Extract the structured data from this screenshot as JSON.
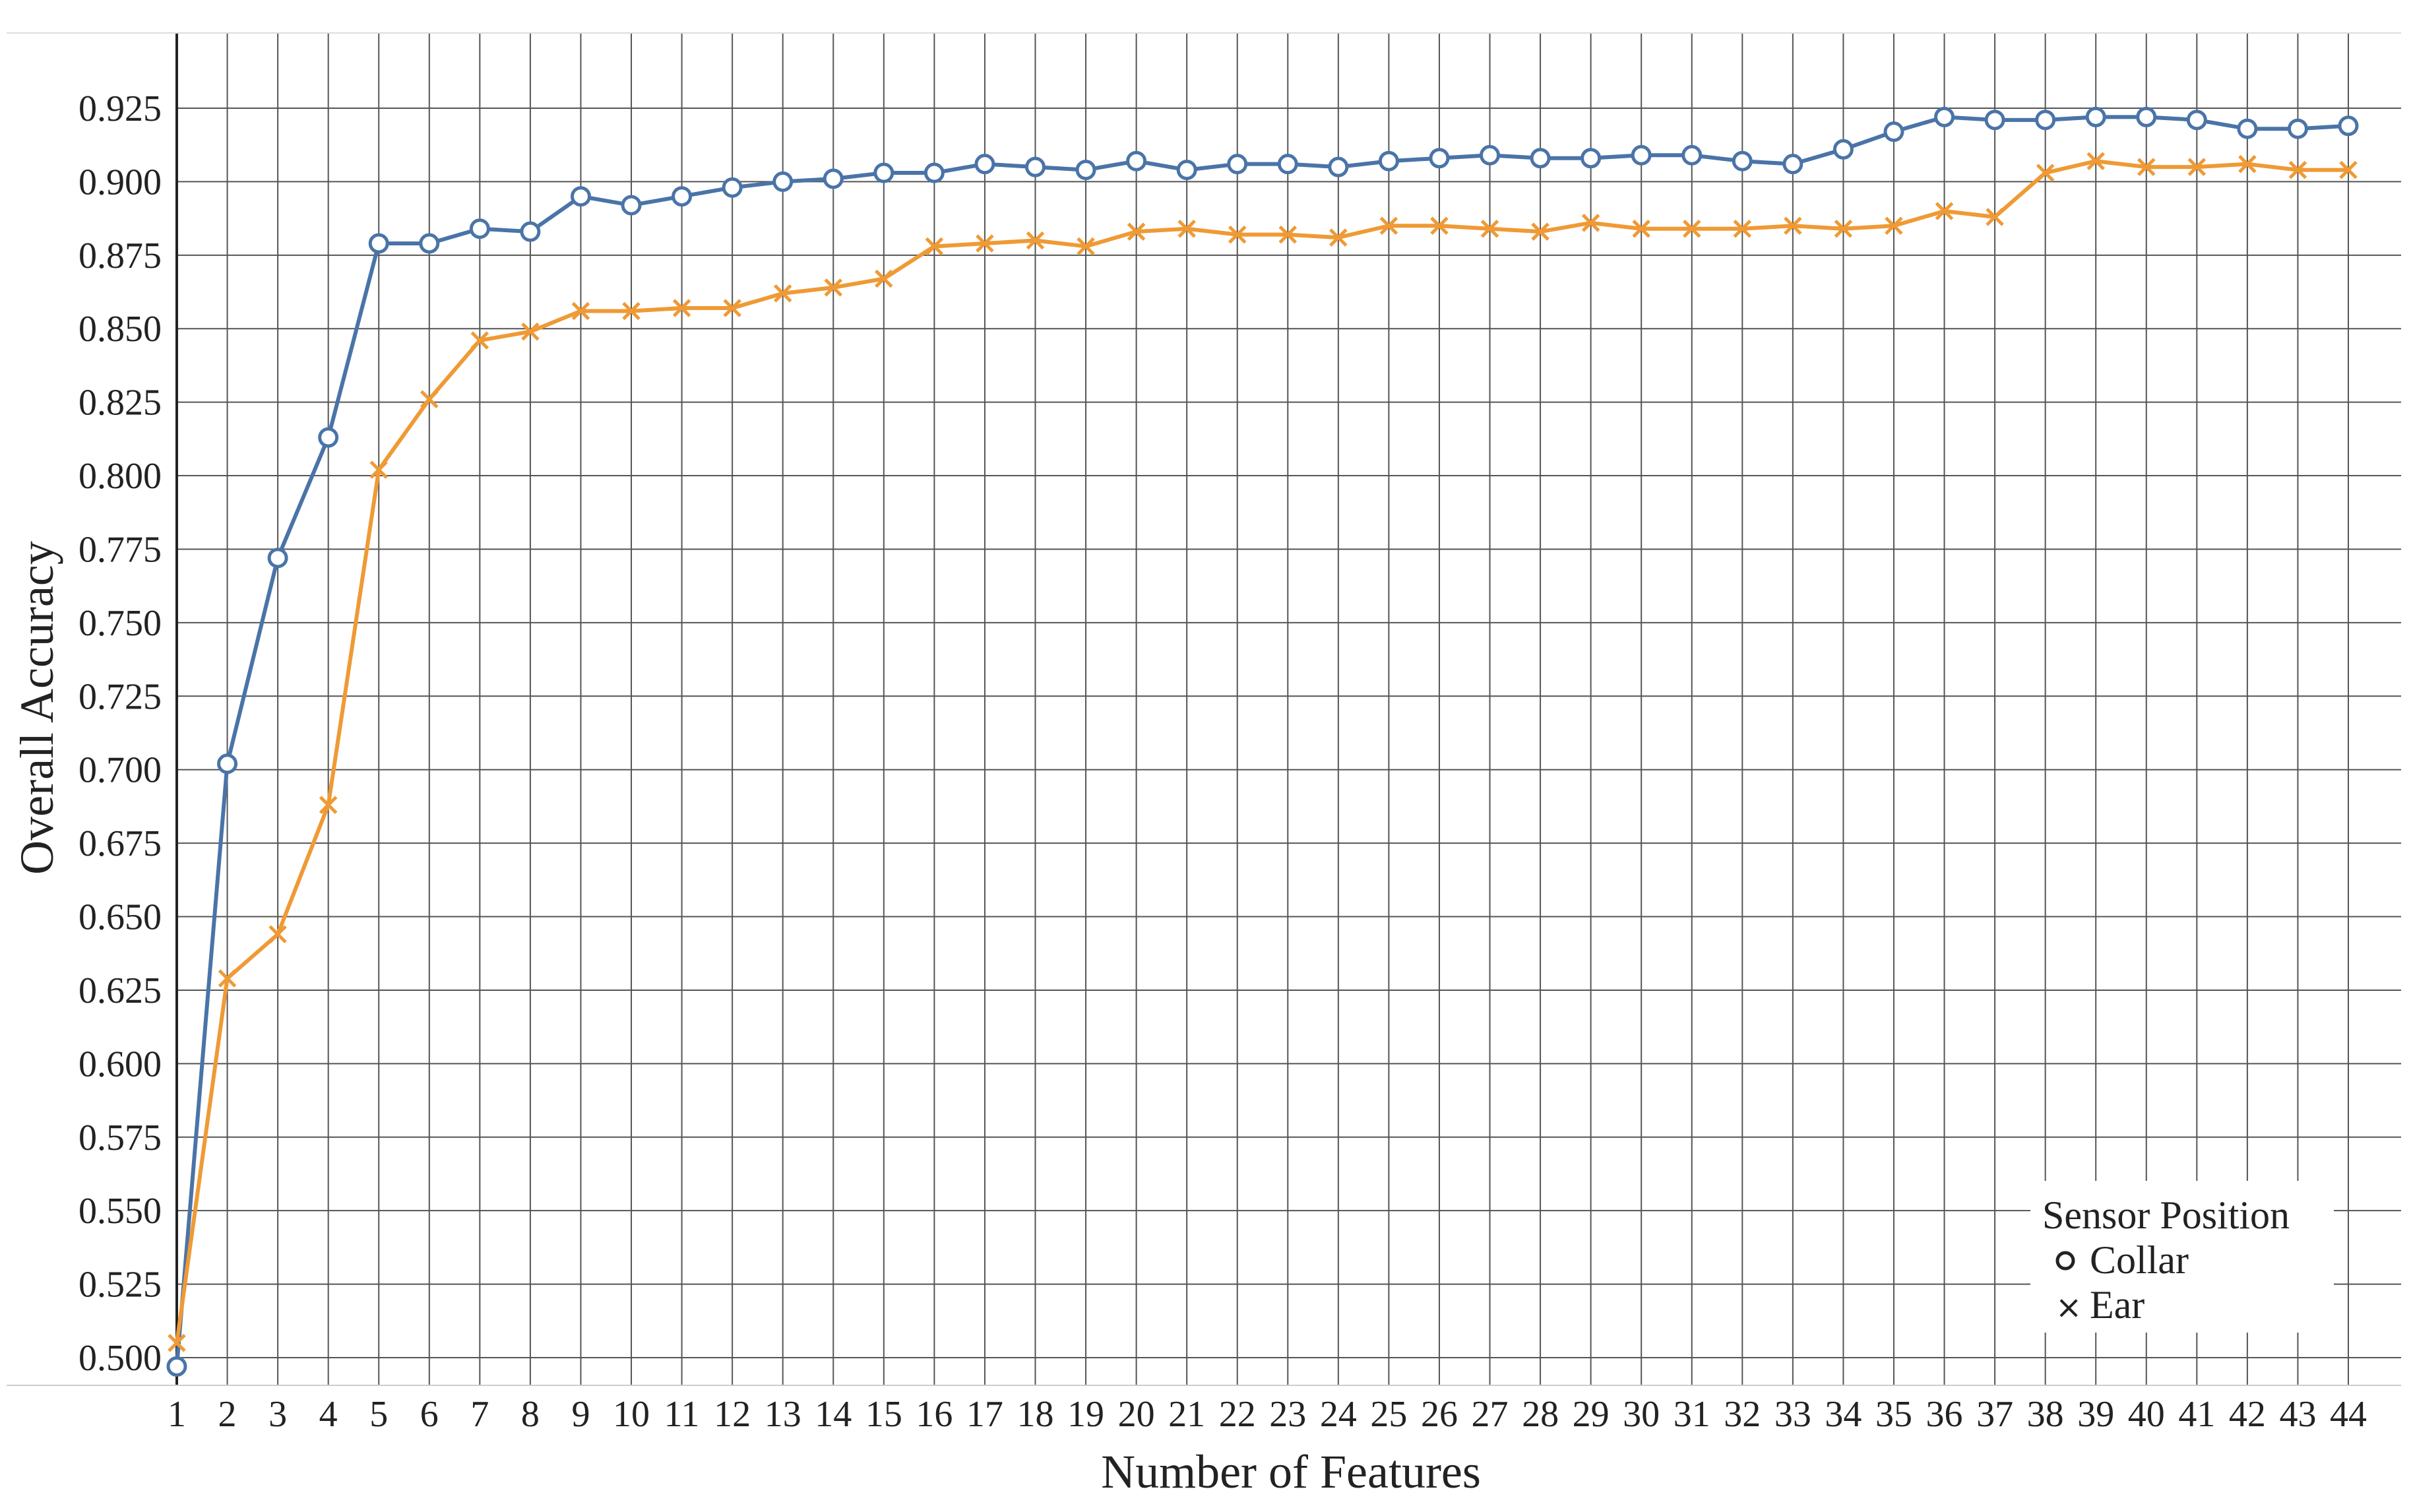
{
  "chart_data": {
    "type": "line",
    "xlabel": "Number of Features",
    "ylabel": "Overall Accuracy",
    "ylim": [
      0.5,
      0.925
    ],
    "xlim": [
      1,
      44
    ],
    "grid": true,
    "y_ticks": [
      "0.500",
      "0.525",
      "0.550",
      "0.575",
      "0.600",
      "0.625",
      "0.650",
      "0.675",
      "0.700",
      "0.725",
      "0.750",
      "0.775",
      "0.800",
      "0.825",
      "0.850",
      "0.875",
      "0.900",
      "0.925"
    ],
    "x": [
      1,
      2,
      3,
      4,
      5,
      6,
      7,
      8,
      9,
      10,
      11,
      12,
      13,
      14,
      15,
      16,
      17,
      18,
      19,
      20,
      21,
      22,
      23,
      24,
      25,
      26,
      27,
      28,
      29,
      30,
      31,
      32,
      33,
      34,
      35,
      36,
      37,
      38,
      39,
      40,
      41,
      42,
      43,
      44
    ],
    "legend": {
      "title": "Sensor Position",
      "position": "bottom-right"
    },
    "series": [
      {
        "name": "Collar",
        "marker": "circle",
        "color": "#4a74a8",
        "values": [
          0.497,
          0.702,
          0.772,
          0.813,
          0.879,
          0.879,
          0.884,
          0.883,
          0.895,
          0.892,
          0.895,
          0.898,
          0.9,
          0.901,
          0.903,
          0.903,
          0.906,
          0.905,
          0.904,
          0.907,
          0.904,
          0.906,
          0.906,
          0.905,
          0.907,
          0.908,
          0.909,
          0.908,
          0.908,
          0.909,
          0.909,
          0.907,
          0.906,
          0.911,
          0.917,
          0.922,
          0.921,
          0.921,
          0.922,
          0.922,
          0.921,
          0.918,
          0.918,
          0.919
        ]
      },
      {
        "name": "Ear",
        "marker": "x",
        "color": "#ef9a35",
        "values": [
          0.505,
          0.629,
          0.644,
          0.688,
          0.802,
          0.826,
          0.846,
          0.849,
          0.856,
          0.856,
          0.857,
          0.857,
          0.862,
          0.864,
          0.867,
          0.878,
          0.879,
          0.88,
          0.878,
          0.883,
          0.884,
          0.882,
          0.882,
          0.881,
          0.885,
          0.885,
          0.884,
          0.883,
          0.886,
          0.884,
          0.884,
          0.884,
          0.885,
          0.884,
          0.885,
          0.89,
          0.888,
          0.903,
          0.907,
          0.905,
          0.905,
          0.906,
          0.904,
          0.904
        ]
      }
    ]
  }
}
